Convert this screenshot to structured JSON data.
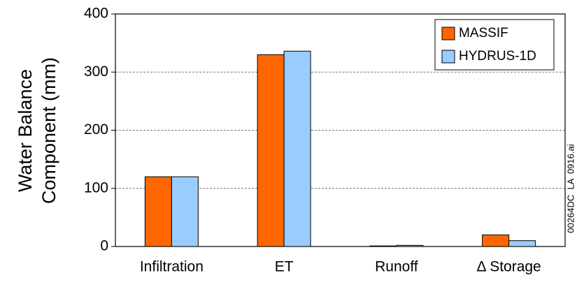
{
  "chart_data": {
    "type": "bar",
    "ylabel": [
      "Water Balance",
      "Component (mm)"
    ],
    "annotation": "00264DC  LA  0916.ai",
    "categories": [
      "Infiltration",
      "ET",
      "Runoff",
      "Δ Storage"
    ],
    "series": [
      {
        "name": "MASSIF",
        "color": "#ff6600",
        "values": [
          120,
          330,
          1,
          20
        ]
      },
      {
        "name": "HYDRUS-1D",
        "color": "#99ccff",
        "values": [
          120,
          336,
          2,
          10
        ]
      }
    ],
    "ylim": [
      0,
      400
    ],
    "yticks": [
      0,
      100,
      200,
      300,
      400
    ],
    "grid": true,
    "legend": "top-right"
  }
}
